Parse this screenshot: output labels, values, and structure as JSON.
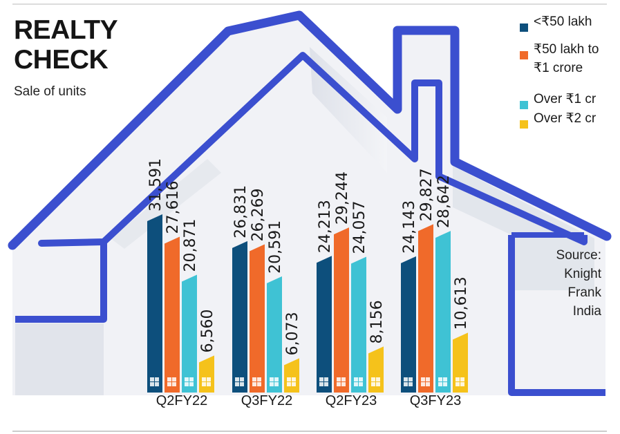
{
  "title": "REALTY CHECK",
  "subtitle": "Sale of units",
  "source": "Source:\nKnight\nFrank\nIndia",
  "colors": {
    "lt50": "#0d4f7c",
    "50to1": "#f06a2a",
    "over1": "#3fc2d4",
    "over2": "#f5c21b",
    "house": "#3b4fcf"
  },
  "legend": [
    {
      "label": "<₹50 lakh",
      "color": "#0d4f7c"
    },
    {
      "label": "₹50 lakh to ₹1 crore",
      "color": "#f06a2a"
    },
    {
      "label": "Over ₹1 cr",
      "color": "#3fc2d4"
    },
    {
      "label": "Over ₹2 cr",
      "color": "#f5c21b"
    }
  ],
  "chart_data": {
    "type": "bar",
    "title": "REALTY CHECK",
    "subtitle": "Sale of units",
    "categories": [
      "Q2FY22",
      "Q3FY22",
      "Q2FY23",
      "Q3FY23"
    ],
    "series": [
      {
        "name": "<₹50 lakh",
        "color": "#0d4f7c",
        "values": [
          31591,
          26831,
          24213,
          24143
        ],
        "labels": [
          "31,591",
          "26,831",
          "24,213",
          "24,143"
        ]
      },
      {
        "name": "₹50 lakh to ₹1 crore",
        "color": "#f06a2a",
        "values": [
          27616,
          26269,
          29244,
          29827
        ],
        "labels": [
          "27,616",
          "26,269",
          "29,244",
          "29,827"
        ]
      },
      {
        "name": "Over ₹1 cr",
        "color": "#3fc2d4",
        "values": [
          20871,
          20591,
          24057,
          28642
        ],
        "labels": [
          "20,871",
          "20,591",
          "24,057",
          "28,642"
        ]
      },
      {
        "name": "Over ₹2 cr",
        "color": "#f5c21b",
        "values": [
          6560,
          6073,
          8156,
          10613
        ],
        "labels": [
          "6,560",
          "6,073",
          "8,156",
          "10,613"
        ]
      }
    ],
    "ylim": [
      0,
      34000
    ],
    "grid": false,
    "legend_position": "top-right"
  }
}
